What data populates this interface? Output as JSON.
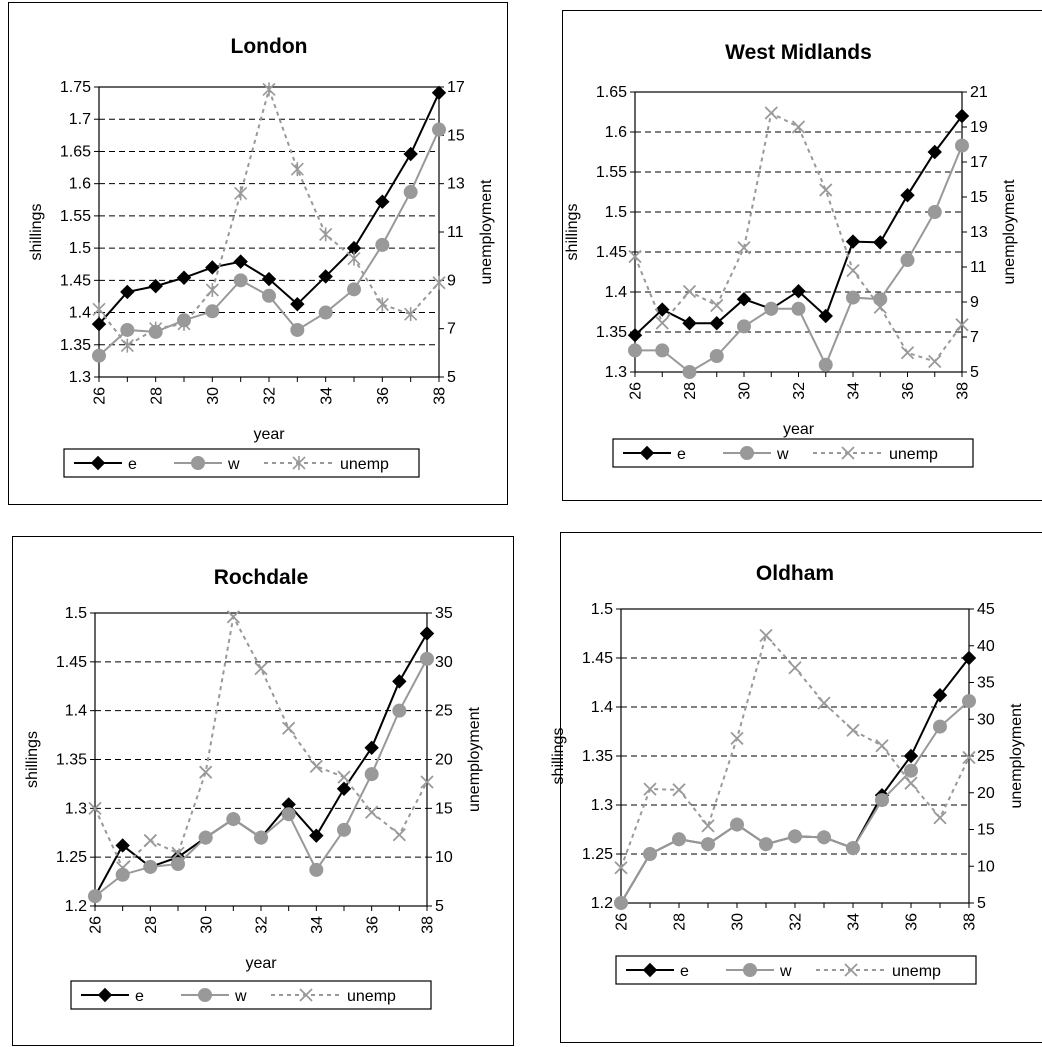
{
  "chart_data": [
    {
      "type": "line",
      "title": "London",
      "xlabel": "year",
      "ylabel": "shillings",
      "y2label": "unemployment",
      "x": [
        26,
        27,
        28,
        29,
        30,
        31,
        32,
        33,
        34,
        35,
        36,
        37,
        38
      ],
      "xticks": [
        "26",
        "28",
        "30",
        "32",
        "34",
        "36",
        "38"
      ],
      "ylim": [
        1.3,
        1.75
      ],
      "yticks": [
        "1.3",
        "1.35",
        "1.4",
        "1.45",
        "1.5",
        "1.55",
        "1.6",
        "1.65",
        "1.7",
        "1.75"
      ],
      "y2lim": [
        5,
        17
      ],
      "y2ticks": [
        "5",
        "7",
        "9",
        "11",
        "13",
        "15",
        "17"
      ],
      "series": [
        {
          "name": "e",
          "axis": "left",
          "color": "#000000",
          "marker": "diamond",
          "dashed": false,
          "values": [
            1.382,
            1.432,
            1.441,
            1.454,
            1.47,
            1.479,
            1.452,
            1.413,
            1.456,
            1.5,
            1.572,
            1.646,
            1.741
          ]
        },
        {
          "name": "w",
          "axis": "left",
          "color": "#999999",
          "marker": "circle",
          "dashed": false,
          "values": [
            1.333,
            1.373,
            1.37,
            1.388,
            1.402,
            1.45,
            1.426,
            1.373,
            1.4,
            1.436,
            1.505,
            1.587,
            1.684
          ]
        },
        {
          "name": "unemp",
          "axis": "right",
          "color": "#999999",
          "marker": "asterisk",
          "dashed": true,
          "values": [
            7.8,
            6.3,
            7.0,
            7.2,
            8.6,
            12.6,
            16.9,
            13.6,
            10.9,
            9.9,
            8.0,
            7.6,
            8.9
          ]
        }
      ]
    },
    {
      "type": "line",
      "title": "West Midlands",
      "xlabel": "year",
      "ylabel": "shillings",
      "y2label": "unemployment",
      "x": [
        26,
        27,
        28,
        29,
        30,
        31,
        32,
        33,
        34,
        35,
        36,
        37,
        38
      ],
      "xticks": [
        "26",
        "28",
        "30",
        "32",
        "34",
        "36",
        "38"
      ],
      "ylim": [
        1.3,
        1.65
      ],
      "yticks": [
        "1.3",
        "1.35",
        "1.4",
        "1.45",
        "1.5",
        "1.55",
        "1.6",
        "1.65"
      ],
      "y2lim": [
        5,
        21
      ],
      "y2ticks": [
        "5",
        "7",
        "9",
        "11",
        "13",
        "15",
        "17",
        "19",
        "21"
      ],
      "series": [
        {
          "name": "e",
          "axis": "left",
          "color": "#000000",
          "marker": "diamond",
          "dashed": false,
          "values": [
            1.346,
            1.378,
            1.361,
            1.361,
            1.391,
            1.379,
            1.401,
            1.37,
            1.463,
            1.462,
            1.521,
            1.575,
            1.62
          ]
        },
        {
          "name": "w",
          "axis": "left",
          "color": "#999999",
          "marker": "circle",
          "dashed": false,
          "values": [
            1.327,
            1.327,
            1.3,
            1.32,
            1.357,
            1.379,
            1.379,
            1.309,
            1.393,
            1.391,
            1.44,
            1.5,
            1.583
          ]
        },
        {
          "name": "unemp",
          "axis": "right",
          "color": "#999999",
          "marker": "cross",
          "dashed": true,
          "values": [
            11.6,
            7.8,
            9.6,
            8.8,
            12.1,
            19.8,
            19.0,
            15.4,
            10.8,
            8.7,
            6.1,
            5.6,
            7.7
          ]
        }
      ]
    },
    {
      "type": "line",
      "title": "Rochdale",
      "xlabel": "year",
      "ylabel": "shillings",
      "y2label": "unemployment",
      "x": [
        26,
        27,
        28,
        29,
        30,
        31,
        32,
        33,
        34,
        35,
        36,
        37,
        38
      ],
      "xticks": [
        "26",
        "28",
        "30",
        "32",
        "34",
        "36",
        "38"
      ],
      "ylim": [
        1.2,
        1.5
      ],
      "yticks": [
        "1.2",
        "1.25",
        "1.3",
        "1.35",
        "1.4",
        "1.45",
        "1.5"
      ],
      "y2lim": [
        5,
        35
      ],
      "y2ticks": [
        "5",
        "10",
        "15",
        "20",
        "25",
        "30",
        "35"
      ],
      "series": [
        {
          "name": "e",
          "axis": "left",
          "color": "#000000",
          "marker": "diamond",
          "dashed": false,
          "values": [
            1.21,
            1.262,
            1.24,
            1.25,
            1.27,
            1.289,
            1.27,
            1.304,
            1.272,
            1.32,
            1.362,
            1.43,
            1.479
          ]
        },
        {
          "name": "w",
          "axis": "left",
          "color": "#999999",
          "marker": "circle",
          "dashed": false,
          "values": [
            1.21,
            1.232,
            1.24,
            1.243,
            1.27,
            1.289,
            1.27,
            1.294,
            1.237,
            1.278,
            1.335,
            1.4,
            1.453
          ]
        },
        {
          "name": "unemp",
          "axis": "right",
          "color": "#999999",
          "marker": "cross",
          "dashed": true,
          "values": [
            15.0,
            8.9,
            11.7,
            10.4,
            18.7,
            34.6,
            29.3,
            23.2,
            19.3,
            18.2,
            14.6,
            12.3,
            17.7
          ]
        }
      ]
    },
    {
      "type": "line",
      "title": "Oldham",
      "xlabel": "year",
      "ylabel": "shillings",
      "y2label": "unemployment",
      "x": [
        26,
        27,
        28,
        29,
        30,
        31,
        32,
        33,
        34,
        35,
        36,
        37,
        38
      ],
      "xticks": [
        "26",
        "28",
        "30",
        "32",
        "34",
        "36",
        "38"
      ],
      "ylim": [
        1.2,
        1.5
      ],
      "yticks": [
        "1.2",
        "1.25",
        "1.3",
        "1.35",
        "1.4",
        "1.45",
        "1.5"
      ],
      "y2lim": [
        5,
        45
      ],
      "y2ticks": [
        "5",
        "10",
        "15",
        "20",
        "25",
        "30",
        "35",
        "40",
        "45"
      ],
      "series": [
        {
          "name": "e",
          "axis": "left",
          "color": "#000000",
          "marker": "diamond",
          "dashed": false,
          "values": [
            1.2,
            1.25,
            1.265,
            1.26,
            1.28,
            1.26,
            1.268,
            1.267,
            1.256,
            1.31,
            1.35,
            1.412,
            1.45
          ]
        },
        {
          "name": "w",
          "axis": "left",
          "color": "#999999",
          "marker": "circle",
          "dashed": false,
          "values": [
            1.2,
            1.25,
            1.265,
            1.26,
            1.28,
            1.26,
            1.268,
            1.267,
            1.256,
            1.305,
            1.335,
            1.38,
            1.406
          ]
        },
        {
          "name": "unemp",
          "axis": "right",
          "color": "#999999",
          "marker": "cross",
          "dashed": true,
          "values": [
            9.8,
            20.5,
            20.4,
            15.5,
            27.4,
            41.4,
            37.0,
            32.2,
            28.5,
            26.4,
            21.3,
            16.6,
            24.8
          ]
        }
      ]
    }
  ]
}
